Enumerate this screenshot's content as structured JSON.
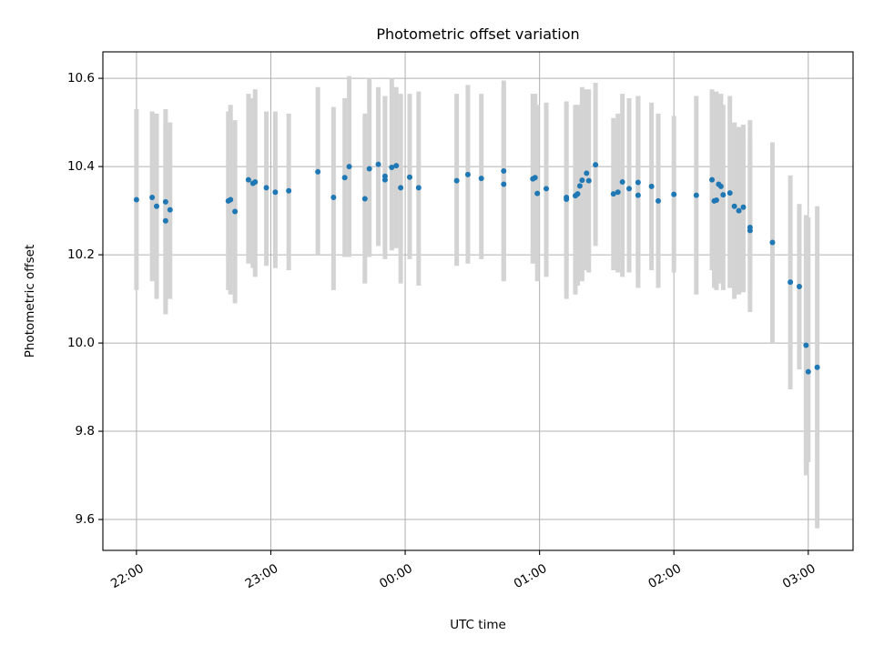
{
  "chart_data": {
    "type": "scatter",
    "title": "Photometric offset variation",
    "xlabel": "UTC time",
    "ylabel": "Photometric offset",
    "x_axis": "time",
    "xlim": [
      "21:45",
      "03:20"
    ],
    "ylim": [
      9.53,
      10.66
    ],
    "x_ticks": [
      "22:00",
      "23:00",
      "00:00",
      "01:00",
      "02:00",
      "03:00"
    ],
    "y_ticks": [
      9.6,
      9.8,
      10.0,
      10.2,
      10.4,
      10.6
    ],
    "grid": true,
    "legend": false,
    "colors": {
      "points": "#1f77b4",
      "errorbars": "#d3d3d3",
      "grid": "#b0b0b0"
    },
    "series": [
      {
        "x": [
          "22:00",
          "22:07",
          "22:09",
          "22:13",
          "22:13",
          "22:15",
          "22:41",
          "22:42",
          "22:44",
          "22:50",
          "22:52",
          "22:53",
          "22:58",
          "23:02",
          "23:08",
          "23:21",
          "23:28",
          "23:33",
          "23:35",
          "23:42",
          "23:44",
          "23:48",
          "23:51",
          "23:51",
          "23:54",
          "23:56",
          "23:58",
          "24:02",
          "24:06",
          "24:23",
          "24:28",
          "24:34",
          "24:44",
          "24:44",
          "24:57",
          "24:58",
          "24:59",
          "25:03",
          "25:12",
          "25:12",
          "25:16",
          "25:17",
          "25:18",
          "25:19",
          "25:21",
          "25:22",
          "25:25",
          "25:33",
          "25:35",
          "25:37",
          "25:40",
          "25:44",
          "25:44",
          "25:50",
          "25:53",
          "26:00",
          "26:10",
          "26:17",
          "26:18",
          "26:19",
          "26:20",
          "26:21",
          "26:22",
          "26:25",
          "26:27",
          "26:29",
          "26:31",
          "26:34",
          "26:34",
          "26:44",
          "26:52",
          "26:56",
          "26:59",
          "27:00",
          "27:04"
        ],
        "y": [
          10.325,
          10.33,
          10.31,
          10.277,
          10.32,
          10.302,
          10.322,
          10.325,
          10.298,
          10.37,
          10.362,
          10.365,
          10.352,
          10.342,
          10.345,
          10.388,
          10.33,
          10.375,
          10.4,
          10.327,
          10.395,
          10.405,
          10.37,
          10.378,
          10.398,
          10.402,
          10.352,
          10.376,
          10.352,
          10.368,
          10.382,
          10.373,
          10.36,
          10.39,
          10.372,
          10.375,
          10.339,
          10.35,
          10.326,
          10.33,
          10.334,
          10.338,
          10.356,
          10.369,
          10.385,
          10.368,
          10.404,
          10.338,
          10.342,
          10.365,
          10.35,
          10.335,
          10.364,
          10.355,
          10.322,
          10.337,
          10.335,
          10.37,
          10.322,
          10.324,
          10.36,
          10.355,
          10.336,
          10.34,
          10.31,
          10.3,
          10.308,
          10.255,
          10.262,
          10.228,
          10.138,
          10.128,
          9.995,
          9.935,
          9.945
        ],
        "yerr_low": [
          10.12,
          10.14,
          10.1,
          10.065,
          10.08,
          10.1,
          10.12,
          10.11,
          10.09,
          10.18,
          10.17,
          10.15,
          10.175,
          10.17,
          10.165,
          10.2,
          10.12,
          10.195,
          10.195,
          10.135,
          10.195,
          10.22,
          10.19,
          10.2,
          10.21,
          10.215,
          10.135,
          10.19,
          10.13,
          10.175,
          10.18,
          10.19,
          10.14,
          10.145,
          10.18,
          10.18,
          10.14,
          10.15,
          10.1,
          10.12,
          10.11,
          10.13,
          10.15,
          10.14,
          10.165,
          10.16,
          10.22,
          10.165,
          10.16,
          10.15,
          10.16,
          10.125,
          10.16,
          10.165,
          10.125,
          10.16,
          10.11,
          10.165,
          10.125,
          10.12,
          10.135,
          10.15,
          10.12,
          10.125,
          10.1,
          10.11,
          10.115,
          10.07,
          10.12,
          10.0,
          9.895,
          9.94,
          9.7,
          9.73,
          9.58
        ],
        "yerr_high": [
          10.53,
          10.525,
          10.52,
          10.49,
          10.53,
          10.5,
          10.525,
          10.54,
          10.505,
          10.565,
          10.555,
          10.575,
          10.525,
          10.525,
          10.52,
          10.58,
          10.535,
          10.555,
          10.605,
          10.52,
          10.6,
          10.58,
          10.56,
          10.56,
          10.6,
          10.58,
          10.565,
          10.565,
          10.57,
          10.565,
          10.585,
          10.565,
          10.58,
          10.595,
          10.565,
          10.565,
          10.54,
          10.545,
          10.548,
          10.54,
          10.54,
          10.54,
          10.54,
          10.58,
          10.575,
          10.575,
          10.59,
          10.51,
          10.52,
          10.565,
          10.555,
          10.56,
          10.56,
          10.545,
          10.52,
          10.515,
          10.56,
          10.575,
          10.555,
          10.57,
          10.55,
          10.565,
          10.54,
          10.56,
          10.5,
          10.49,
          10.495,
          10.505,
          10.46,
          10.455,
          10.38,
          10.315,
          10.29,
          10.285,
          10.31
        ]
      }
    ]
  }
}
